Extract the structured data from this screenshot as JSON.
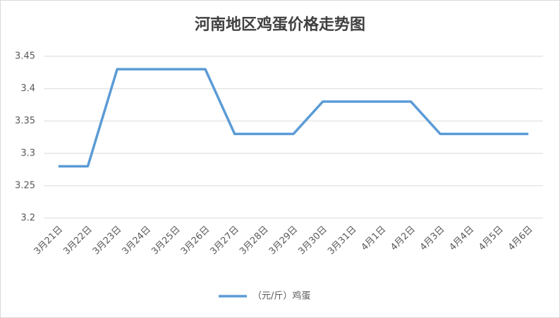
{
  "chart_data": {
    "type": "line",
    "title": "河南地区鸡蛋价格走势图",
    "categories": [
      "3月21日",
      "3月22日",
      "3月23日",
      "3月24日",
      "3月25日",
      "3月26日",
      "3月27日",
      "3月28日",
      "3月29日",
      "3月30日",
      "3月31日",
      "4月1日",
      "4月2日",
      "4月3日",
      "4月4日",
      "4月5日",
      "4月6日"
    ],
    "series": [
      {
        "name": "（元/斤）鸡蛋",
        "color": "#5b9bd5",
        "values": [
          3.28,
          3.28,
          3.43,
          3.43,
          3.43,
          3.43,
          3.33,
          3.33,
          3.33,
          3.38,
          3.38,
          3.38,
          3.38,
          3.33,
          3.33,
          3.33,
          3.33
        ]
      }
    ],
    "ylim": [
      3.2,
      3.45
    ],
    "yticks": [
      3.2,
      3.25,
      3.3,
      3.35,
      3.4,
      3.45
    ],
    "grid": true,
    "legend": "bottom"
  }
}
